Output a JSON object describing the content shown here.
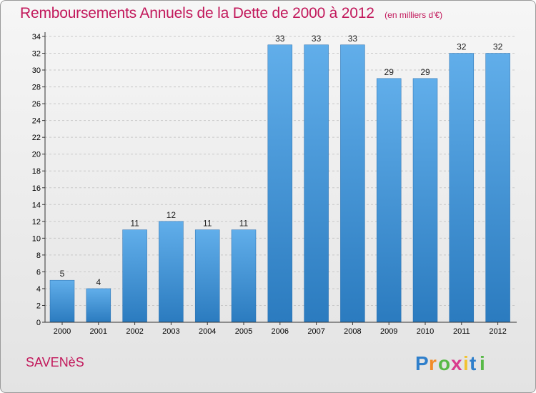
{
  "header": {
    "title": "Remboursements Annuels de la Dette de 2000 à 2012",
    "subtitle": "(en milliers d'€)"
  },
  "footer": {
    "location": "SAVENèS",
    "logo_text": "Proxiti"
  },
  "colors": {
    "title": "#c2185b",
    "bar_top": "#61aeea",
    "bar_bottom": "#2b7bbf",
    "background_top": "#f6f6f6",
    "background_bottom": "#e3e3e3",
    "grid": "#c8c8c8",
    "axis": "#333333"
  },
  "chart_data": {
    "type": "bar",
    "title": "Remboursements Annuels de la Dette de 2000 à 2012",
    "subtitle": "(en milliers d'€)",
    "categories": [
      "2000",
      "2001",
      "2002",
      "2003",
      "2004",
      "2005",
      "2006",
      "2007",
      "2008",
      "2009",
      "2010",
      "2011",
      "2012"
    ],
    "values": [
      5,
      4,
      11,
      12,
      11,
      11,
      33,
      33,
      33,
      29,
      29,
      32,
      32
    ],
    "xlabel": "",
    "ylabel": "",
    "ylim": [
      0,
      34
    ],
    "yticks": [
      0,
      2,
      4,
      6,
      8,
      10,
      12,
      14,
      16,
      18,
      20,
      22,
      24,
      26,
      28,
      30,
      32,
      34
    ],
    "grid": true,
    "legend": "none"
  }
}
